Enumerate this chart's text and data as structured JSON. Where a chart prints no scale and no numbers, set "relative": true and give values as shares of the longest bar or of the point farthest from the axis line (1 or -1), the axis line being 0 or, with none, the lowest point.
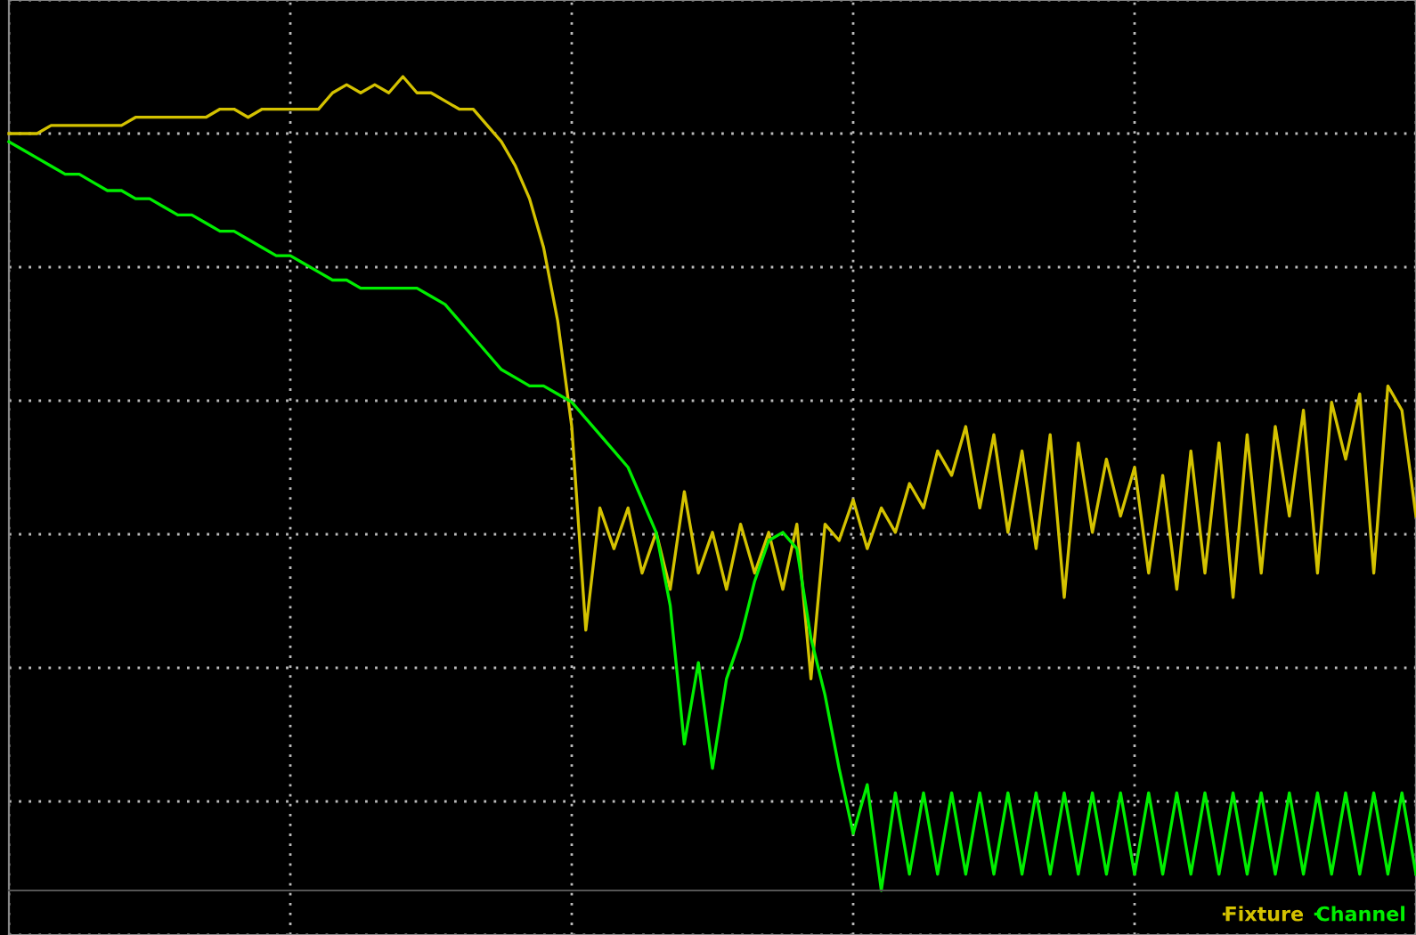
{
  "chart_data": {
    "type": "line",
    "relative": true,
    "grid": true,
    "legend": "bottom right",
    "marker": "none",
    "line_style": "solid",
    "categories": [
      null,
      null,
      null,
      null,
      null,
      null,
      null,
      null,
      null,
      null,
      null,
      null,
      null,
      null,
      null,
      null,
      null,
      null,
      null,
      null,
      null,
      null,
      null,
      null,
      null,
      null,
      null,
      null,
      null,
      null,
      null,
      null,
      null,
      null,
      null,
      null,
      null,
      null,
      null,
      null,
      null,
      null,
      null,
      null,
      null,
      null,
      null,
      null,
      null,
      null,
      null,
      null,
      null,
      null,
      null,
      null,
      null,
      null,
      null,
      null,
      null,
      null,
      null,
      null,
      null,
      null,
      null,
      null,
      null,
      null,
      null,
      null,
      null,
      null,
      null,
      null,
      null,
      null,
      null,
      null,
      null,
      null,
      null,
      null,
      null,
      null,
      null,
      null,
      null,
      null,
      null,
      null,
      null,
      null,
      null,
      null,
      null,
      null,
      null,
      null,
      null
    ],
    "series": [
      {
        "name": "Fixture",
        "color": "#d4c200",
        "values": [
          0.93,
          0.93,
          0.93,
          0.94,
          0.94,
          0.94,
          0.94,
          0.94,
          0.94,
          0.95,
          0.95,
          0.95,
          0.95,
          0.95,
          0.95,
          0.96,
          0.96,
          0.95,
          0.96,
          0.96,
          0.96,
          0.96,
          0.96,
          0.98,
          0.99,
          0.98,
          0.99,
          0.98,
          1.0,
          0.98,
          0.98,
          0.97,
          0.96,
          0.96,
          0.94,
          0.92,
          0.89,
          0.85,
          0.79,
          0.7,
          0.57,
          0.32,
          0.47,
          0.42,
          0.47,
          0.39,
          0.44,
          0.37,
          0.49,
          0.39,
          0.44,
          0.37,
          0.45,
          0.39,
          0.44,
          0.37,
          0.45,
          0.26,
          0.45,
          0.43,
          0.48,
          0.42,
          0.47,
          0.44,
          0.5,
          0.47,
          0.54,
          0.51,
          0.57,
          0.47,
          0.56,
          0.44,
          0.54,
          0.42,
          0.56,
          0.36,
          0.55,
          0.44,
          0.53,
          0.46,
          0.52,
          0.39,
          0.51,
          0.37,
          0.54,
          0.39,
          0.55,
          0.36,
          0.56,
          0.39,
          0.57,
          0.46,
          0.59,
          0.39,
          0.6,
          0.53,
          0.61,
          0.39,
          0.62,
          0.59,
          0.46
        ]
      },
      {
        "name": "Channel",
        "color": "#00ee00",
        "values": [
          0.92,
          0.91,
          0.9,
          0.89,
          0.88,
          0.88,
          0.87,
          0.86,
          0.86,
          0.85,
          0.85,
          0.84,
          0.83,
          0.83,
          0.82,
          0.81,
          0.81,
          0.8,
          0.79,
          0.78,
          0.78,
          0.77,
          0.76,
          0.75,
          0.75,
          0.74,
          0.74,
          0.74,
          0.74,
          0.74,
          0.73,
          0.72,
          0.7,
          0.68,
          0.66,
          0.64,
          0.63,
          0.62,
          0.62,
          0.61,
          0.6,
          0.58,
          0.56,
          0.54,
          0.52,
          0.48,
          0.44,
          0.35,
          0.18,
          0.28,
          0.15,
          0.26,
          0.31,
          0.38,
          0.43,
          0.44,
          0.42,
          0.31,
          0.24,
          0.15,
          0.07,
          0.13,
          0,
          0.12,
          0.02,
          0.12,
          0.02,
          0.12,
          0.02,
          0.12,
          0.02,
          0.12,
          0.02,
          0.12,
          0.02,
          0.12,
          0.02,
          0.12,
          0.02,
          0.12,
          0.02,
          0.12,
          0.02,
          0.12,
          0.02,
          0.12,
          0.02,
          0.12,
          0.02,
          0.12,
          0.02,
          0.12,
          0.02,
          0.12,
          0.02,
          0.12,
          0.02,
          0.12,
          0.02,
          0.12,
          0.02
        ]
      }
    ]
  }
}
